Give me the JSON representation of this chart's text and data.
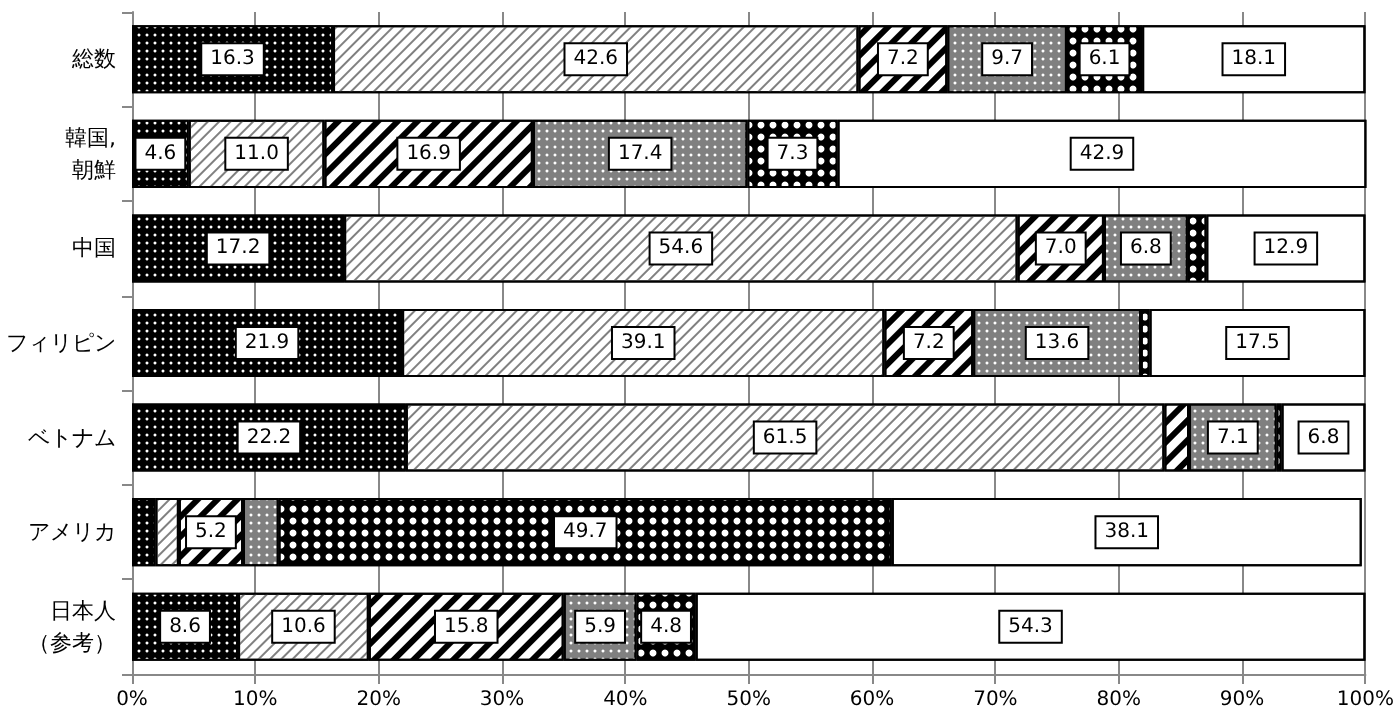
{
  "chart_data": {
    "type": "bar",
    "orientation": "horizontal",
    "stacked": true,
    "categories": [
      "総数",
      "韓国,朝鮮",
      "中国",
      "フィリピン",
      "ベトナム",
      "アメリカ",
      "日本人（参考）"
    ],
    "series": [
      {
        "color": "#000000",
        "values": [
          16.3,
          4.6,
          17.2,
          21.9,
          22.2,
          1.9,
          8.6
        ],
        "value_labels": [
          "16.3",
          "4.6",
          "17.2",
          "21.9",
          "22.2",
          null,
          "8.6"
        ]
      },
      {
        "color": "#ffffff",
        "values": [
          42.6,
          11.0,
          54.6,
          39.1,
          61.5,
          1.9,
          10.6
        ],
        "value_labels": [
          "42.6",
          "11.0",
          "54.6",
          "39.1",
          "61.5",
          null,
          "10.6"
        ]
      },
      {
        "color": "#ffffff",
        "values": [
          7.2,
          16.9,
          7.0,
          7.2,
          2.0,
          5.2,
          15.8
        ],
        "value_labels": [
          "7.2",
          "16.9",
          "7.0",
          "7.2",
          null,
          "5.2",
          "15.8"
        ]
      },
      {
        "color": "#808080",
        "values": [
          9.7,
          17.4,
          6.8,
          13.6,
          7.1,
          2.9,
          5.9
        ],
        "value_labels": [
          "9.7",
          "17.4",
          "6.8",
          "13.6",
          "7.1",
          null,
          "5.9"
        ]
      },
      {
        "color": "#000000",
        "values": [
          6.1,
          7.3,
          1.5,
          0.7,
          0.4,
          49.7,
          4.8
        ],
        "value_labels": [
          "6.1",
          "7.3",
          null,
          null,
          null,
          "49.7",
          "4.8"
        ]
      },
      {
        "color": "#ffffff",
        "values": [
          18.1,
          42.9,
          12.9,
          17.5,
          6.8,
          38.1,
          54.3
        ],
        "value_labels": [
          "18.1",
          "42.9",
          "12.9",
          "17.5",
          "6.8",
          "38.1",
          "54.3"
        ]
      }
    ],
    "xlim": [
      0,
      100
    ],
    "xticks": [
      {
        "value": 0,
        "label": "0%"
      },
      {
        "value": 10,
        "label": "10%"
      },
      {
        "value": 20,
        "label": "20%"
      },
      {
        "value": 30,
        "label": "30%"
      },
      {
        "value": 40,
        "label": "40%"
      },
      {
        "value": 50,
        "label": "50%"
      },
      {
        "value": 60,
        "label": "60%"
      },
      {
        "value": 70,
        "label": "70%"
      },
      {
        "value": 80,
        "label": "80%"
      },
      {
        "value": 90,
        "label": "90%"
      },
      {
        "value": 100,
        "label": "100%"
      }
    ],
    "grid": "x"
  }
}
